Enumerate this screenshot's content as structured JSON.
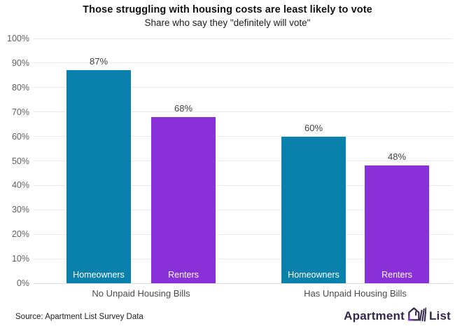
{
  "title": "Those struggling with housing costs are least likely to vote",
  "subtitle": "Share who say they \"definitely will vote\"",
  "source": "Source: Apartment List Survey Data",
  "logo": {
    "word1": "Apartment",
    "word2": "List",
    "mark": "apartment-list-logomark",
    "color": "#33284d",
    "accent": "#8b2fd9"
  },
  "colors": {
    "homeowners_bar": "#0a81ac",
    "renters_bar": "#8a30d9",
    "gridline": "#ebebeb",
    "axis_label": "#5f5f5f",
    "value_label": "#3f3f3f",
    "category_label": "#4a4a4a",
    "title_color": "#111111"
  },
  "chart_data": {
    "type": "bar",
    "categories": [
      "No Unpaid Housing Bills",
      "Has Unpaid Housing Bills"
    ],
    "series": [
      {
        "name": "Homeowners",
        "values": [
          87,
          60
        ],
        "color": "#0a81ac"
      },
      {
        "name": "Renters",
        "values": [
          68,
          48
        ],
        "color": "#8a30d9"
      }
    ],
    "value_labels": [
      [
        "87%",
        "60%"
      ],
      [
        "68%",
        "48%"
      ]
    ],
    "title": "Those struggling with housing costs are least likely to vote",
    "subtitle": "Share who say they \"definitely will vote\"",
    "xlabel": "",
    "ylabel": "",
    "ylim": [
      0,
      100
    ],
    "yticks": [
      "0%",
      "10%",
      "20%",
      "30%",
      "40%",
      "50%",
      "60%",
      "70%",
      "80%",
      "90%",
      "100%"
    ],
    "grid": true,
    "legend": "labels-inside-bars"
  }
}
